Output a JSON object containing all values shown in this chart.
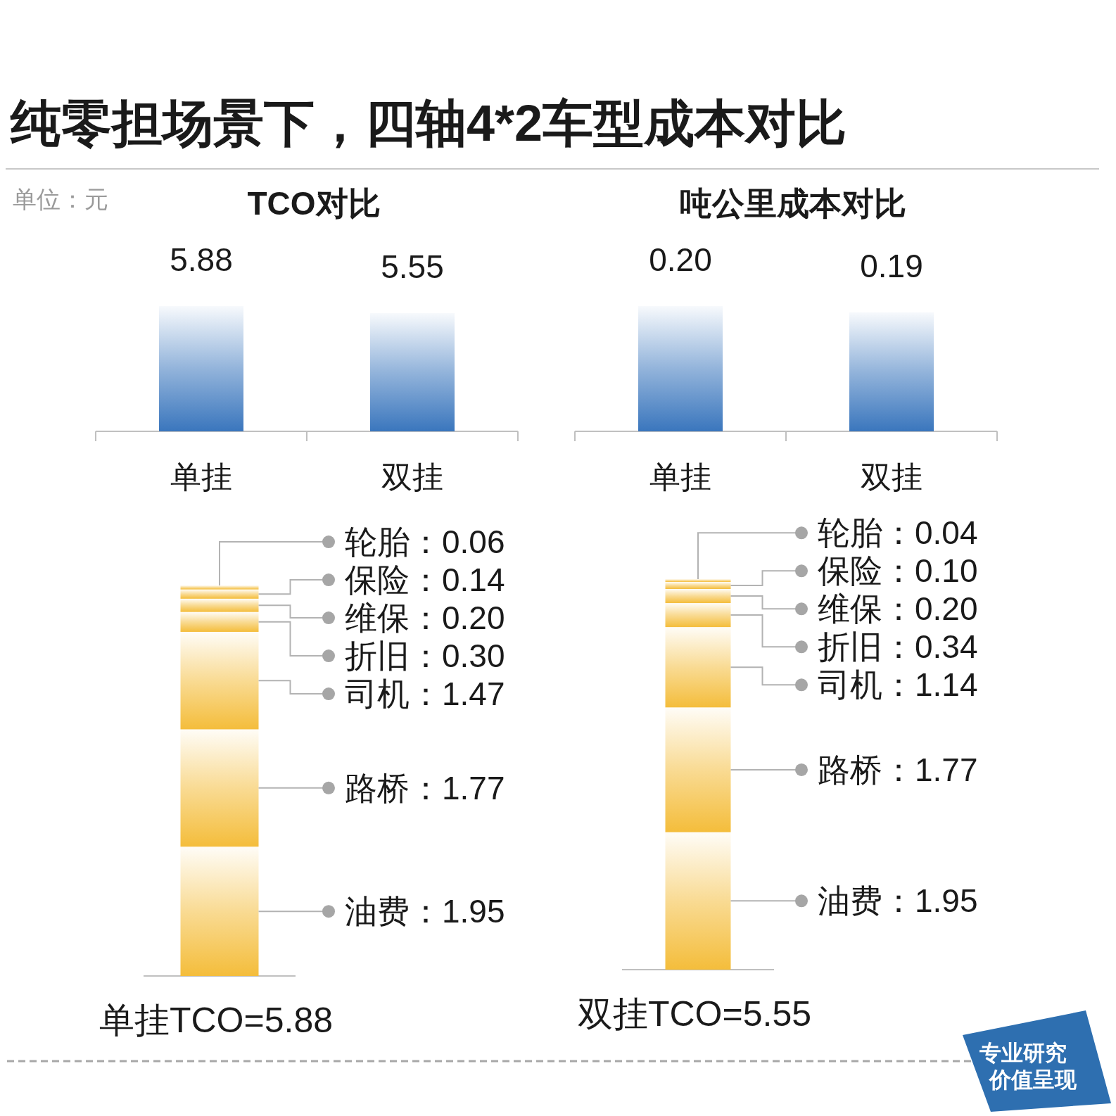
{
  "chart_data": [
    {
      "type": "other",
      "title": "纯零担场景下，四轴4*2车型成本对比",
      "subtitle": "单位：元",
      "annotations": [
        "专业研究",
        "价值呈现"
      ]
    },
    {
      "type": "bar",
      "title": "TCO对比",
      "categories": [
        "单挂",
        "双挂"
      ],
      "values": [
        5.88,
        5.55
      ],
      "color": "#3a76bd",
      "data_labels": true
    },
    {
      "type": "bar",
      "title": "吨公里成本对比",
      "categories": [
        "单挂",
        "双挂"
      ],
      "values": [
        0.2,
        0.19
      ],
      "value_labels": [
        "0.20",
        "0.19"
      ],
      "color": "#3a76bd"
    },
    {
      "type": "bar",
      "stacked": true,
      "categories": [
        "单挂TCO=5.88"
      ],
      "series": [
        {
          "color": "#f4bd3b",
          "values": [
            1.95
          ],
          "value_labels": [
            "油费：1.95"
          ]
        },
        {
          "color": "#f4bd3b",
          "values": [
            1.77
          ],
          "value_labels": [
            "路桥：1.77"
          ]
        },
        {
          "color": "#f4bd3b",
          "values": [
            1.47
          ],
          "value_labels": [
            "司机：1.47"
          ]
        },
        {
          "color": "#f4bd3b",
          "values": [
            0.3
          ],
          "value_labels": [
            "折旧：0.30"
          ]
        },
        {
          "color": "#f4bd3b",
          "values": [
            0.2
          ],
          "value_labels": [
            "维保：0.20"
          ]
        },
        {
          "color": "#f4bd3b",
          "values": [
            0.14
          ],
          "value_labels": [
            "保险：0.14"
          ]
        },
        {
          "color": "#f4bd3b",
          "values": [
            0.06
          ],
          "value_labels": [
            "轮胎：0.06"
          ]
        }
      ]
    },
    {
      "type": "bar",
      "stacked": true,
      "categories": [
        "双挂TCO=5.55"
      ],
      "series": [
        {
          "color": "#f4bd3b",
          "values": [
            1.95
          ],
          "value_labels": [
            "油费：1.95"
          ]
        },
        {
          "color": "#f4bd3b",
          "values": [
            1.77
          ],
          "value_labels": [
            "路桥：1.77"
          ]
        },
        {
          "color": "#f4bd3b",
          "values": [
            1.14
          ],
          "value_labels": [
            "司机：1.14"
          ]
        },
        {
          "color": "#f4bd3b",
          "values": [
            0.34
          ],
          "value_labels": [
            "折旧：0.34"
          ]
        },
        {
          "color": "#f4bd3b",
          "values": [
            0.2
          ],
          "value_labels": [
            "维保：0.20"
          ]
        },
        {
          "color": "#f4bd3b",
          "values": [
            0.1
          ],
          "value_labels": [
            "保险：0.10"
          ]
        },
        {
          "color": "#f4bd3b",
          "values": [
            0.04
          ],
          "value_labels": [
            "轮胎：0.04"
          ]
        }
      ]
    }
  ]
}
